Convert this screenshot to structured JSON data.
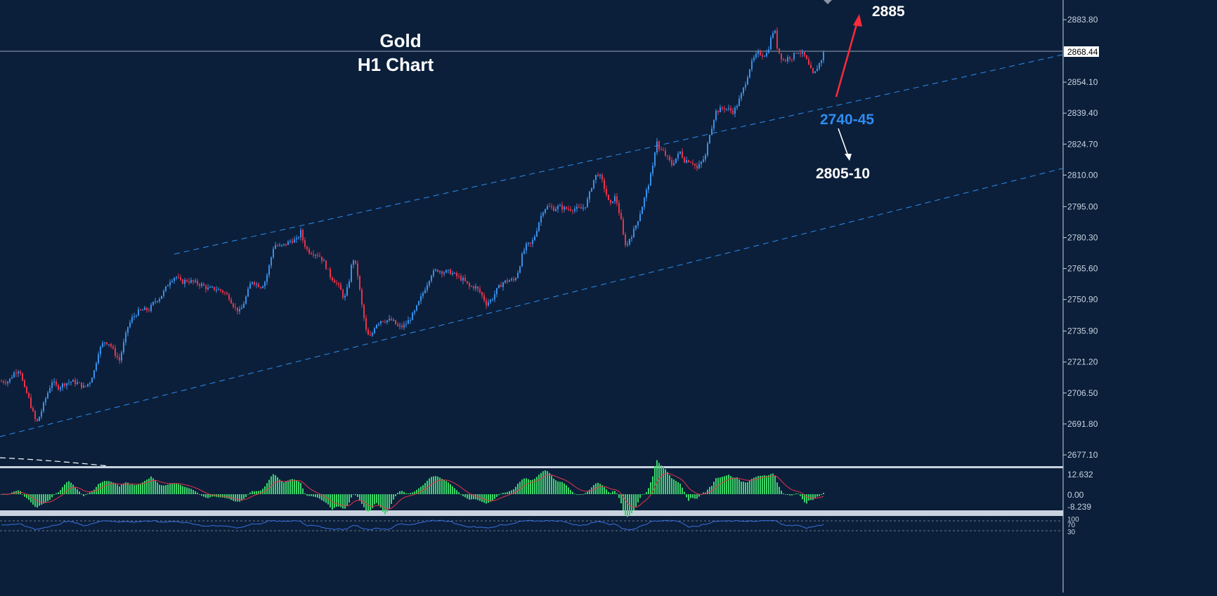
{
  "title": "Gold",
  "subtitle": "H1  Chart",
  "price_scale": {
    "labels": [
      "2883.80",
      "2868.44",
      "2854.10",
      "2839.40",
      "2824.70",
      "2810.00",
      "2795.00",
      "2780.30",
      "2765.60",
      "2750.90",
      "2735.90",
      "2721.20",
      "2706.50",
      "2691.80",
      "2677.10"
    ],
    "current_price": "2868.44"
  },
  "annotations": {
    "target_up": "2885",
    "support": "2740-45",
    "target_down": "2805-10"
  },
  "oscillator": {
    "labels": [
      "12.632",
      "0.00",
      "-8.239"
    ]
  },
  "rsi": {
    "labels": [
      "100",
      "70",
      "30"
    ]
  },
  "colors": {
    "background": "#0b1f3a",
    "bull": "#3b8fe8",
    "bear": "#e8334a",
    "histogram": "#3dd46a",
    "signal": "#e8334a",
    "channel": "#2f8cf0",
    "arrow_up": "#ff2a3a",
    "support_text": "#2f8cf0"
  },
  "chart_data": {
    "type": "candlestick",
    "symbol": "Gold",
    "timeframe": "H1",
    "ylim": [
      2672,
      2893
    ],
    "current": 2868.44,
    "close_path": [
      [
        0,
        2712
      ],
      [
        12,
        2712
      ],
      [
        20,
        2716
      ],
      [
        28,
        2718
      ],
      [
        34,
        2709
      ],
      [
        40,
        2705
      ],
      [
        46,
        2698
      ],
      [
        52,
        2692
      ],
      [
        58,
        2697
      ],
      [
        66,
        2705
      ],
      [
        74,
        2712
      ],
      [
        82,
        2709
      ],
      [
        92,
        2711
      ],
      [
        102,
        2712
      ],
      [
        112,
        2711
      ],
      [
        120,
        2709
      ],
      [
        128,
        2712
      ],
      [
        134,
        2717
      ],
      [
        140,
        2726
      ],
      [
        148,
        2731
      ],
      [
        156,
        2730
      ],
      [
        164,
        2725
      ],
      [
        170,
        2722
      ],
      [
        176,
        2730
      ],
      [
        182,
        2738
      ],
      [
        188,
        2742
      ],
      [
        196,
        2745
      ],
      [
        204,
        2746
      ],
      [
        212,
        2746
      ],
      [
        220,
        2750
      ],
      [
        228,
        2752
      ],
      [
        234,
        2755
      ],
      [
        242,
        2760
      ],
      [
        250,
        2762
      ],
      [
        258,
        2759
      ],
      [
        266,
        2760
      ],
      [
        276,
        2759
      ],
      [
        286,
        2758
      ],
      [
        296,
        2756
      ],
      [
        306,
        2756
      ],
      [
        316,
        2755
      ],
      [
        326,
        2752
      ],
      [
        334,
        2747
      ],
      [
        342,
        2745
      ],
      [
        350,
        2752
      ],
      [
        358,
        2760
      ],
      [
        366,
        2758
      ],
      [
        372,
        2757
      ],
      [
        378,
        2760
      ],
      [
        384,
        2768
      ],
      [
        390,
        2777
      ],
      [
        398,
        2776
      ],
      [
        406,
        2777
      ],
      [
        414,
        2779
      ],
      [
        422,
        2779
      ],
      [
        428,
        2783
      ],
      [
        432,
        2778
      ],
      [
        438,
        2774
      ],
      [
        446,
        2773
      ],
      [
        454,
        2772
      ],
      [
        462,
        2768
      ],
      [
        470,
        2762
      ],
      [
        478,
        2759
      ],
      [
        484,
        2756
      ],
      [
        490,
        2751
      ],
      [
        496,
        2758
      ],
      [
        502,
        2771
      ],
      [
        508,
        2765
      ],
      [
        514,
        2750
      ],
      [
        518,
        2742
      ],
      [
        522,
        2734
      ],
      [
        528,
        2733
      ],
      [
        534,
        2739
      ],
      [
        542,
        2741
      ],
      [
        550,
        2741
      ],
      [
        558,
        2741
      ],
      [
        566,
        2738
      ],
      [
        574,
        2738
      ],
      [
        582,
        2741
      ],
      [
        590,
        2745
      ],
      [
        598,
        2751
      ],
      [
        606,
        2757
      ],
      [
        614,
        2763
      ],
      [
        622,
        2765
      ],
      [
        630,
        2764
      ],
      [
        640,
        2764
      ],
      [
        650,
        2762
      ],
      [
        660,
        2760
      ],
      [
        668,
        2757
      ],
      [
        676,
        2757
      ],
      [
        684,
        2754
      ],
      [
        692,
        2749
      ],
      [
        700,
        2751
      ],
      [
        708,
        2756
      ],
      [
        716,
        2759
      ],
      [
        724,
        2760
      ],
      [
        732,
        2760
      ],
      [
        738,
        2765
      ],
      [
        744,
        2773
      ],
      [
        750,
        2777
      ],
      [
        756,
        2777
      ],
      [
        762,
        2782
      ],
      [
        768,
        2789
      ],
      [
        774,
        2794
      ],
      [
        780,
        2795
      ],
      [
        788,
        2794
      ],
      [
        796,
        2795
      ],
      [
        804,
        2794
      ],
      [
        812,
        2794
      ],
      [
        820,
        2794
      ],
      [
        828,
        2794
      ],
      [
        834,
        2796
      ],
      [
        838,
        2800
      ],
      [
        844,
        2807
      ],
      [
        850,
        2811
      ],
      [
        856,
        2808
      ],
      [
        862,
        2802
      ],
      [
        868,
        2795
      ],
      [
        874,
        2800
      ],
      [
        878,
        2797
      ],
      [
        884,
        2788
      ],
      [
        888,
        2779
      ],
      [
        892,
        2776
      ],
      [
        896,
        2780
      ],
      [
        900,
        2782
      ],
      [
        906,
        2787
      ],
      [
        912,
        2793
      ],
      [
        918,
        2800
      ],
      [
        924,
        2807
      ],
      [
        930,
        2815
      ],
      [
        934,
        2828
      ],
      [
        938,
        2822
      ],
      [
        944,
        2821
      ],
      [
        950,
        2818
      ],
      [
        956,
        2815
      ],
      [
        962,
        2818
      ],
      [
        968,
        2821
      ],
      [
        974,
        2817
      ],
      [
        980,
        2817
      ],
      [
        986,
        2816
      ],
      [
        992,
        2813
      ],
      [
        998,
        2816
      ],
      [
        1004,
        2819
      ],
      [
        1010,
        2830
      ],
      [
        1014,
        2834
      ],
      [
        1018,
        2840
      ],
      [
        1024,
        2841
      ],
      [
        1030,
        2842
      ],
      [
        1038,
        2841
      ],
      [
        1044,
        2840
      ],
      [
        1050,
        2844
      ],
      [
        1056,
        2849
      ],
      [
        1062,
        2855
      ],
      [
        1068,
        2862
      ],
      [
        1074,
        2866
      ],
      [
        1080,
        2868
      ],
      [
        1086,
        2867
      ],
      [
        1092,
        2868
      ],
      [
        1098,
        2876
      ],
      [
        1102,
        2880
      ],
      [
        1106,
        2871
      ],
      [
        1110,
        2867
      ],
      [
        1116,
        2864
      ],
      [
        1122,
        2866
      ],
      [
        1128,
        2866
      ],
      [
        1134,
        2869
      ],
      [
        1140,
        2868
      ],
      [
        1146,
        2866
      ],
      [
        1152,
        2861
      ],
      [
        1158,
        2857
      ],
      [
        1164,
        2862
      ],
      [
        1168,
        2864
      ],
      [
        1172,
        2868
      ]
    ]
  }
}
